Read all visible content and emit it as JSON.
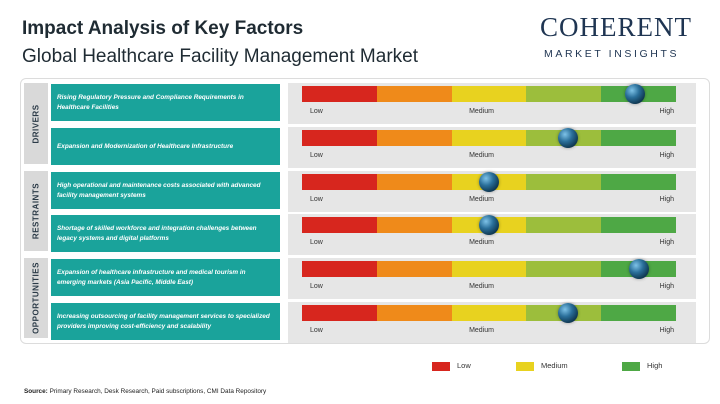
{
  "header": {
    "title": "Impact Analysis of Key Factors",
    "subtitle": "Global Healthcare Facility Management Market"
  },
  "logo": {
    "name": "COHERENT",
    "tagline": "MARKET INSIGHTS"
  },
  "scale_labels": {
    "low": "Low",
    "medium": "Medium",
    "high": "High"
  },
  "colors": {
    "segments": [
      "#d7261e",
      "#ef8a1a",
      "#e8d21f",
      "#9cbe3c",
      "#4ea845"
    ],
    "factor_box": "#1aa39b",
    "category_bar": "#d9d9d9"
  },
  "chart_data": {
    "type": "table",
    "scale": [
      "Low",
      "Medium",
      "High"
    ],
    "categories": [
      {
        "name": "DRIVERS",
        "factors": [
          {
            "text": "Rising Regulatory Pressure and Compliance Requirements in Healthcare Facilities",
            "impact": 0.89
          },
          {
            "text": "Expansion and Modernization of Healthcare Infrastructure",
            "impact": 0.71
          }
        ]
      },
      {
        "name": "RESTRAINTS",
        "factors": [
          {
            "text": "High operational and maintenance costs associated with advanced facility management systems",
            "impact": 0.5
          },
          {
            "text": "Shortage of skilled workforce and integration challenges between legacy systems and digital platforms",
            "impact": 0.5
          }
        ]
      },
      {
        "name": "OPPORTUNITIES",
        "factors": [
          {
            "text": "Expansion of healthcare infrastructure and medical tourism in emerging markets (Asia Pacific, Middle East)",
            "impact": 0.9
          },
          {
            "text": "Increasing outsourcing of facility management services to specialized providers improving cost-efficiency and scalability",
            "impact": 0.71
          }
        ]
      }
    ],
    "legend": [
      {
        "label": "Low",
        "color": "#d7261e"
      },
      {
        "label": "Medium",
        "color": "#e8d21f"
      },
      {
        "label": "High",
        "color": "#4ea845"
      }
    ]
  },
  "footer": {
    "source_label": "Source:",
    "source_text": "Primary Research, Desk Research, Paid subscriptions, CMI Data Repository"
  }
}
